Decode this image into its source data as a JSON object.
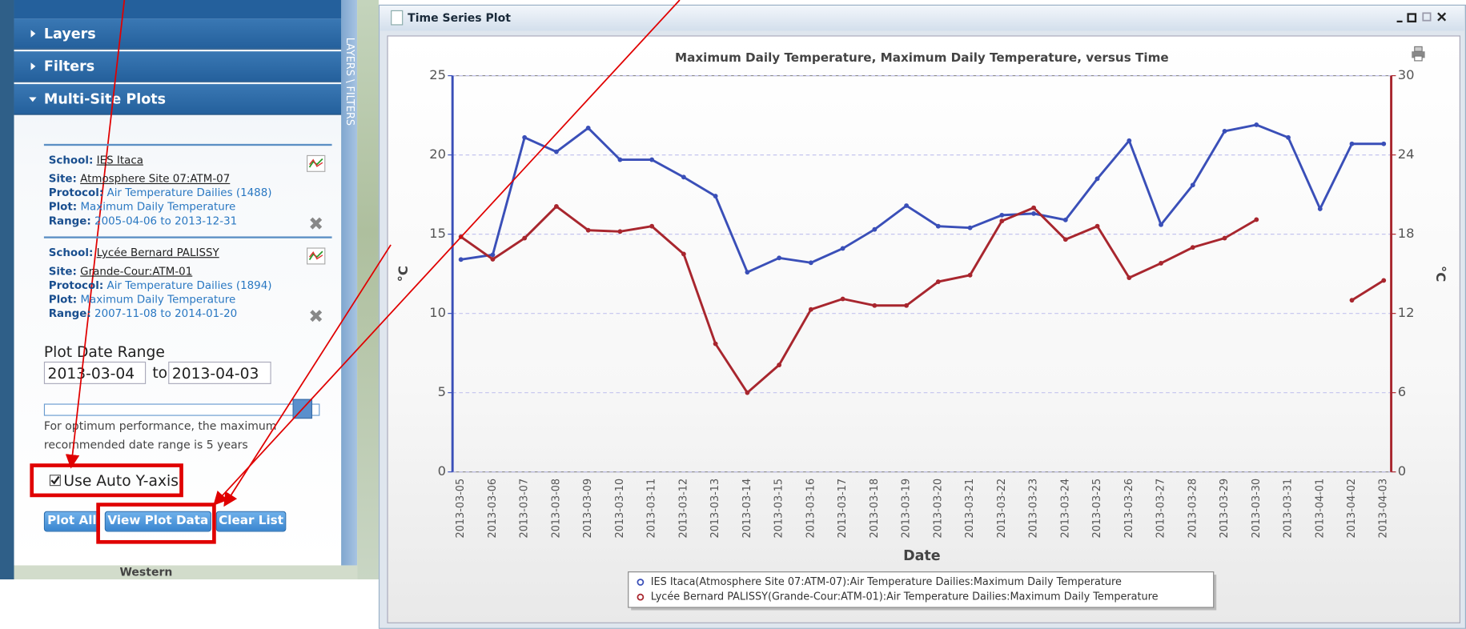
{
  "sidebar": {
    "sections": [
      "Layers",
      "Filters",
      "Multi-Site Plots"
    ],
    "tab_label": "LAYERS \\ FILTERS",
    "entries": [
      {
        "school_label": "School:",
        "school": "IES Itaca",
        "site_label": "Site:",
        "site": "Atmosphere Site 07:ATM-07",
        "protocol_label": "Protocol:",
        "protocol": "Air Temperature Dailies (1488)",
        "plot_label": "Plot:",
        "plot": "Maximum Daily Temperature",
        "range_label": "Range:",
        "range": "2005-04-06 to 2013-12-31"
      },
      {
        "school_label": "School:",
        "school": "Lycée Bernard PALISSY",
        "site_label": "Site:",
        "site": "Grande-Cour:ATM-01",
        "protocol_label": "Protocol:",
        "protocol": "Air Temperature Dailies (1894)",
        "plot_label": "Plot:",
        "plot": "Maximum Daily Temperature",
        "range_label": "Range:",
        "range": "2007-11-08 to 2014-01-20"
      }
    ],
    "date_range_label": "Plot Date Range",
    "start_date": "2013-03-04",
    "to": "to",
    "end_date": "2013-04-03",
    "note_lines": [
      "For optimum performance, the maximum",
      "recommended date range is 5 years"
    ],
    "auto_y_label": "Use Auto Y-axis",
    "buttons": [
      "Plot All",
      "View Plot Data",
      "Clear List"
    ],
    "map_label": "Western"
  },
  "window_title": "Time Series Plot",
  "chart_data": {
    "type": "line",
    "title": "Maximum Daily Temperature, Maximum Daily Temperature, versus Time",
    "x_label": "Date",
    "y_label": "°C",
    "y2_label": "°C",
    "categories": [
      "2013-03-05",
      "2013-03-06",
      "2013-03-07",
      "2013-03-08",
      "2013-03-09",
      "2013-03-10",
      "2013-03-11",
      "2013-03-12",
      "2013-03-13",
      "2013-03-14",
      "2013-03-15",
      "2013-03-16",
      "2013-03-17",
      "2013-03-18",
      "2013-03-19",
      "2013-03-20",
      "2013-03-21",
      "2013-03-22",
      "2013-03-23",
      "2013-03-24",
      "2013-03-25",
      "2013-03-26",
      "2013-03-27",
      "2013-03-28",
      "2013-03-29",
      "2013-03-30",
      "2013-03-31",
      "2013-04-01",
      "2013-04-02",
      "2013-04-03"
    ],
    "series": [
      {
        "name": "IES Itaca(Atmosphere Site 07:ATM-07):Air Temperature Dailies:Maximum Daily Temperature",
        "color": "#3a4fb8",
        "values": [
          13.4,
          13.7,
          21.1,
          20.2,
          21.7,
          19.7,
          19.7,
          18.6,
          17.4,
          12.6,
          13.5,
          13.2,
          14.1,
          15.3,
          16.8,
          15.5,
          15.4,
          16.2,
          16.3,
          15.9,
          18.5,
          20.9,
          15.6,
          18.1,
          21.5,
          21.9,
          21.1,
          16.6,
          20.7,
          20.7
        ]
      },
      {
        "name": "Lycée Bernard PALISSY(Grande-Cour:ATM-01):Air Temperature Dailies:Maximum Daily Temperature",
        "color": "#a8262e",
        "axis": "y2",
        "values": [
          17.8,
          16.1,
          17.7,
          20.1,
          18.3,
          18.2,
          18.6,
          16.5,
          9.7,
          6.0,
          8.1,
          12.3,
          13.1,
          12.6,
          12.6,
          14.4,
          14.9,
          19.0,
          20.0,
          17.6,
          18.6,
          14.7,
          15.8,
          17.0,
          17.7,
          19.1,
          null,
          null,
          13.0,
          14.5
        ]
      }
    ],
    "ylim": [
      0,
      25
    ],
    "yticks": [
      0,
      5,
      10,
      15,
      20,
      25
    ],
    "y2lim": [
      0,
      30
    ],
    "y2ticks": [
      0,
      6,
      12,
      18,
      24,
      30
    ],
    "grid": true
  }
}
